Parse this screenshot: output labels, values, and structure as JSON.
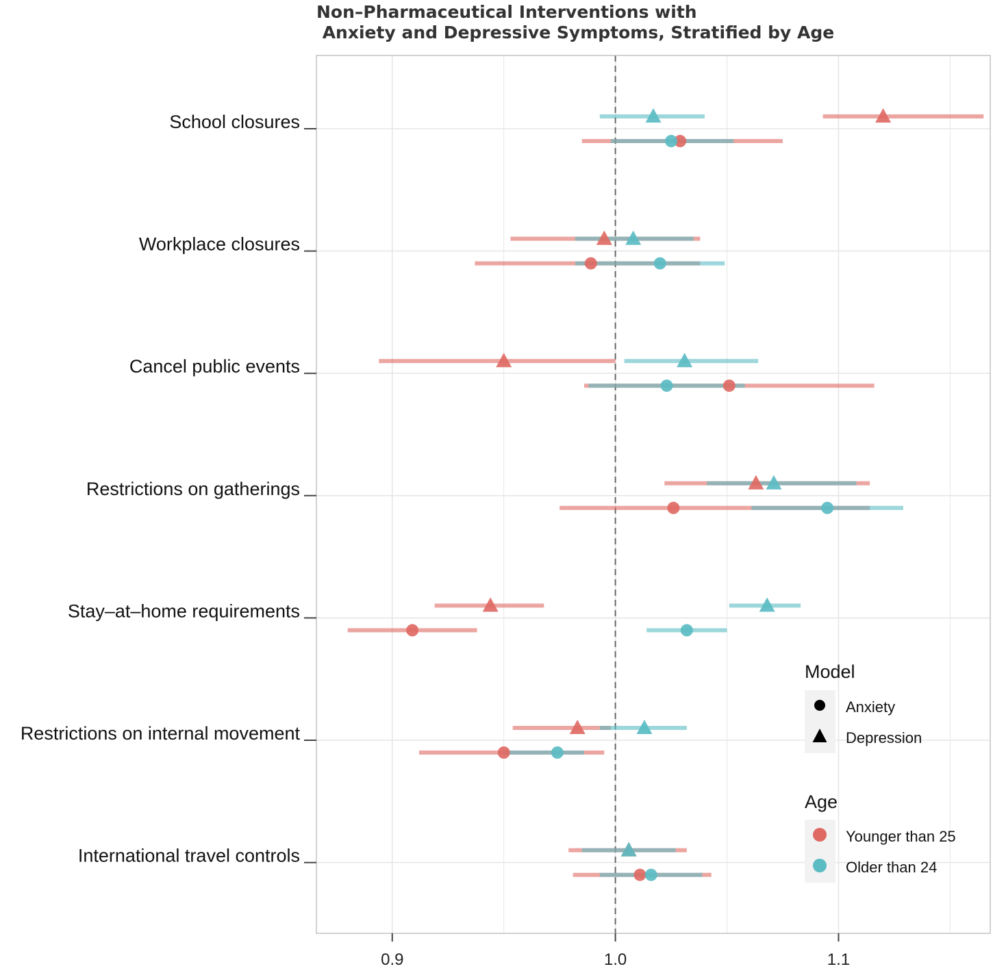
{
  "chart_data": {
    "type": "forest",
    "title_line1": "Non–Pharmaceutical Interventions with",
    "title_line2": " Anxiety and Depressive Symptoms, Stratified by Age",
    "xlabel": "",
    "ylabel": "",
    "xlim": [
      0.866,
      1.168
    ],
    "xticks": [
      0.9,
      1.0,
      1.1
    ],
    "xtick_labels": [
      "0.9",
      "1.0",
      "1.1"
    ],
    "reference_line": 1.0,
    "categories": [
      "School closures",
      "Workplace closures",
      "Cancel public events",
      "Restrictions on gatherings",
      "Stay–at–home requirements",
      "Restrictions on internal movement",
      "International travel controls"
    ],
    "series": [
      {
        "name": "Depression / Younger than 25",
        "model": "Depression",
        "age": "Younger than 25",
        "estimates": [
          1.12,
          0.995,
          0.95,
          1.063,
          0.944,
          0.983,
          1.006
        ],
        "lower": [
          1.093,
          0.953,
          0.894,
          1.022,
          0.919,
          0.954,
          0.979
        ],
        "upper": [
          1.165,
          1.038,
          1.0,
          1.114,
          0.968,
          0.998,
          1.032
        ]
      },
      {
        "name": "Depression / Older than 24",
        "model": "Depression",
        "age": "Older than 24",
        "estimates": [
          1.017,
          1.008,
          1.031,
          1.071,
          1.068,
          1.013,
          1.006
        ],
        "lower": [
          0.993,
          0.982,
          1.004,
          1.041,
          1.051,
          0.993,
          0.985
        ],
        "upper": [
          1.04,
          1.035,
          1.064,
          1.108,
          1.083,
          1.032,
          1.027
        ]
      },
      {
        "name": "Anxiety / Younger than 25",
        "model": "Anxiety",
        "age": "Younger than 25",
        "estimates": [
          1.029,
          0.989,
          1.051,
          1.026,
          0.909,
          0.95,
          1.011
        ],
        "lower": [
          0.985,
          0.937,
          0.986,
          0.975,
          0.88,
          0.912,
          0.981
        ],
        "upper": [
          1.075,
          1.038,
          1.116,
          1.114,
          0.938,
          0.995,
          1.043
        ]
      },
      {
        "name": "Anxiety / Older than 24",
        "model": "Anxiety",
        "age": "Older than 24",
        "estimates": [
          1.025,
          1.02,
          1.023,
          1.095,
          1.032,
          0.974,
          1.016
        ],
        "lower": [
          0.998,
          0.982,
          0.988,
          1.061,
          1.014,
          0.95,
          0.993
        ],
        "upper": [
          1.053,
          1.049,
          1.058,
          1.129,
          1.05,
          0.986,
          1.039
        ]
      }
    ]
  },
  "legend": {
    "model_title": "Model",
    "model_items": [
      {
        "label": "Anxiety",
        "shape": "circle"
      },
      {
        "label": "Depression",
        "shape": "triangle"
      }
    ],
    "age_title": "Age",
    "age_items": [
      {
        "label": "Younger than 25",
        "color": "#df6a64"
      },
      {
        "label": "Older than 24",
        "color": "#5bbcc3"
      }
    ]
  },
  "colors": {
    "younger": "#df6a64",
    "older": "#5bbcc3",
    "grid": "#e6e6e6",
    "panel_border": "#b5b5b5",
    "legend_bg": "#f2f2f2",
    "ref_line": "#666666"
  }
}
